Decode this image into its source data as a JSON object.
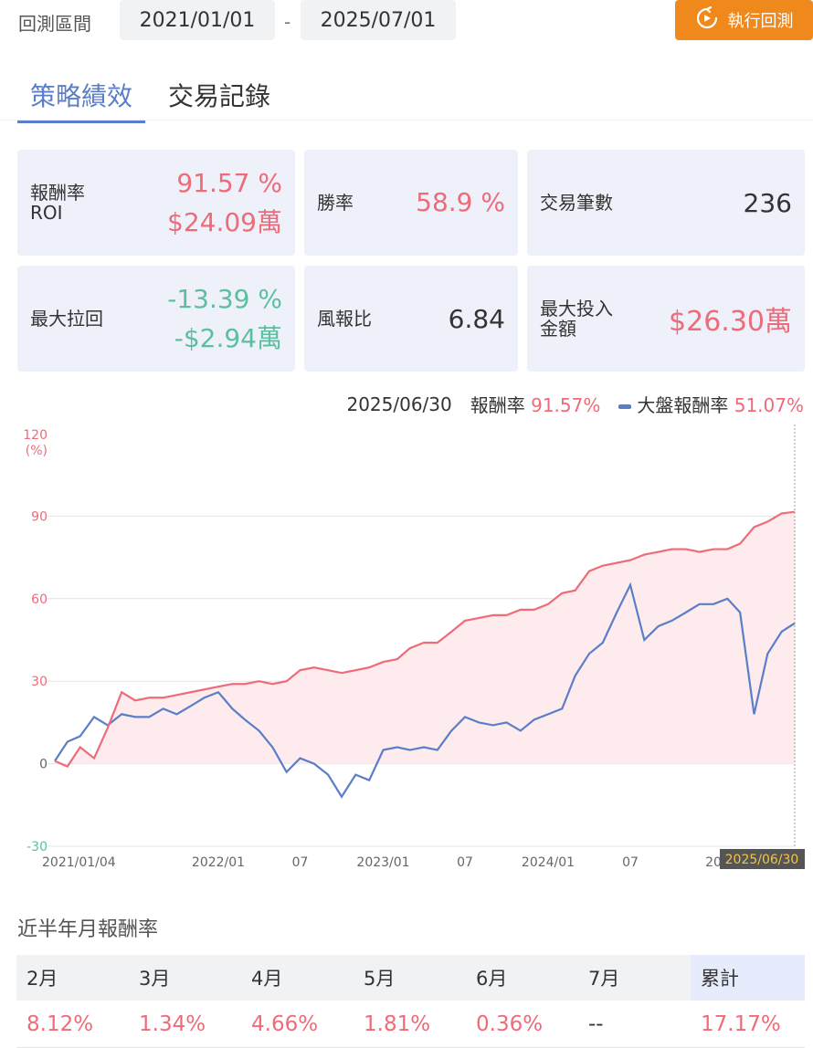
{
  "header": {
    "range_label": "回測區間",
    "start_date": "2021/01/01",
    "separator": "-",
    "end_date": "2025/07/01",
    "run_button_label": "執行回測",
    "run_icon": "refresh-run-icon",
    "accent_color": "#f0891b"
  },
  "tabs": [
    {
      "label": "策略績效",
      "active": true
    },
    {
      "label": "交易記錄",
      "active": false
    }
  ],
  "metrics": {
    "roi": {
      "label_line1": "報酬率",
      "label_line2": "ROI",
      "pct": "91.57 %",
      "amount": "$24.09萬"
    },
    "win_rate": {
      "label": "勝率",
      "value": "58.9 %"
    },
    "trades": {
      "label": "交易筆數",
      "value": "236"
    },
    "max_drawdown": {
      "label": "最大拉回",
      "pct": "-13.39 %",
      "amount": "-$2.94萬"
    },
    "risk_reward": {
      "label": "風報比",
      "value": "6.84"
    },
    "max_invest": {
      "label_line1": "最大投入",
      "label_line2": "金額",
      "value": "$26.30萬"
    }
  },
  "legend": {
    "date": "2025/06/30",
    "strategy_label": "報酬率",
    "strategy_value": "91.57%",
    "market_label": "大盤報酬率",
    "market_value": "51.07%"
  },
  "chart_data": {
    "type": "line",
    "ylabel_top": "120",
    "ylabel_unit": "(%)",
    "ylim": [
      -30,
      120
    ],
    "yticks": [
      -30,
      0,
      30,
      60,
      90
    ],
    "xticks": [
      "2021/01/04",
      "2022/01",
      "07",
      "2023/01",
      "07",
      "2024/01",
      "07",
      "20"
    ],
    "cursor_label": "2025/06/30",
    "colors": {
      "strategy": "#ee6b79",
      "market": "#5b7ec8",
      "fill": "#fdebee"
    },
    "series": [
      {
        "name": "報酬率",
        "x": [
          "2021-01-04",
          "2021-02-01",
          "2021-03-01",
          "2021-04-01",
          "2021-05-01",
          "2021-06-01",
          "2021-07-01",
          "2021-08-01",
          "2021-09-01",
          "2021-10-01",
          "2021-11-01",
          "2021-12-01",
          "2022-01-01",
          "2022-02-01",
          "2022-03-01",
          "2022-04-01",
          "2022-05-01",
          "2022-06-01",
          "2022-07-01",
          "2022-08-01",
          "2022-09-01",
          "2022-10-01",
          "2022-11-01",
          "2022-12-01",
          "2023-01-01",
          "2023-02-01",
          "2023-03-01",
          "2023-04-01",
          "2023-05-01",
          "2023-06-01",
          "2023-07-01",
          "2023-08-01",
          "2023-09-01",
          "2023-10-01",
          "2023-11-01",
          "2023-12-01",
          "2024-01-01",
          "2024-02-01",
          "2024-03-01",
          "2024-04-01",
          "2024-05-01",
          "2024-06-01",
          "2024-07-01",
          "2024-08-01",
          "2024-09-01",
          "2024-10-01",
          "2024-11-01",
          "2024-12-01",
          "2025-01-01",
          "2025-02-01",
          "2025-03-01",
          "2025-04-01",
          "2025-05-01",
          "2025-06-01",
          "2025-06-30"
        ],
        "values": [
          1,
          -1,
          6,
          2,
          13,
          26,
          23,
          24,
          24,
          25,
          26,
          27,
          28,
          29,
          29,
          30,
          29,
          30,
          34,
          35,
          34,
          33,
          34,
          35,
          37,
          38,
          42,
          44,
          44,
          48,
          52,
          53,
          54,
          54,
          56,
          56,
          58,
          62,
          63,
          70,
          72,
          73,
          74,
          76,
          77,
          78,
          78,
          77,
          78,
          78,
          80,
          86,
          88,
          91,
          91.57
        ]
      },
      {
        "name": "大盤報酬率",
        "x": [
          "2021-01-04",
          "2021-02-01",
          "2021-03-01",
          "2021-04-01",
          "2021-05-01",
          "2021-06-01",
          "2021-07-01",
          "2021-08-01",
          "2021-09-01",
          "2021-10-01",
          "2021-11-01",
          "2021-12-01",
          "2022-01-01",
          "2022-02-01",
          "2022-03-01",
          "2022-04-01",
          "2022-05-01",
          "2022-06-01",
          "2022-07-01",
          "2022-08-01",
          "2022-09-01",
          "2022-10-01",
          "2022-11-01",
          "2022-12-01",
          "2023-01-01",
          "2023-02-01",
          "2023-03-01",
          "2023-04-01",
          "2023-05-01",
          "2023-06-01",
          "2023-07-01",
          "2023-08-01",
          "2023-09-01",
          "2023-10-01",
          "2023-11-01",
          "2023-12-01",
          "2024-01-01",
          "2024-02-01",
          "2024-03-01",
          "2024-04-01",
          "2024-05-01",
          "2024-06-01",
          "2024-07-01",
          "2024-08-01",
          "2024-09-01",
          "2024-10-01",
          "2024-11-01",
          "2024-12-01",
          "2025-01-01",
          "2025-02-01",
          "2025-03-01",
          "2025-04-01",
          "2025-05-01",
          "2025-06-01",
          "2025-06-30"
        ],
        "values": [
          1,
          8,
          10,
          17,
          14,
          18,
          17,
          17,
          20,
          18,
          21,
          24,
          26,
          20,
          16,
          12,
          6,
          -3,
          2,
          0,
          -4,
          -12,
          -4,
          -6,
          5,
          6,
          5,
          6,
          5,
          12,
          17,
          15,
          14,
          15,
          12,
          16,
          18,
          20,
          32,
          40,
          44,
          55,
          65,
          45,
          50,
          52,
          55,
          58,
          58,
          60,
          55,
          18,
          40,
          48,
          51.07
        ]
      }
    ]
  },
  "monthly": {
    "title": "近半年月報酬率",
    "headers": [
      "2月",
      "3月",
      "4月",
      "5月",
      "6月",
      "7月",
      "累計"
    ],
    "values": [
      "8.12%",
      "1.34%",
      "4.66%",
      "1.81%",
      "0.36%",
      "--",
      "17.17%"
    ]
  }
}
